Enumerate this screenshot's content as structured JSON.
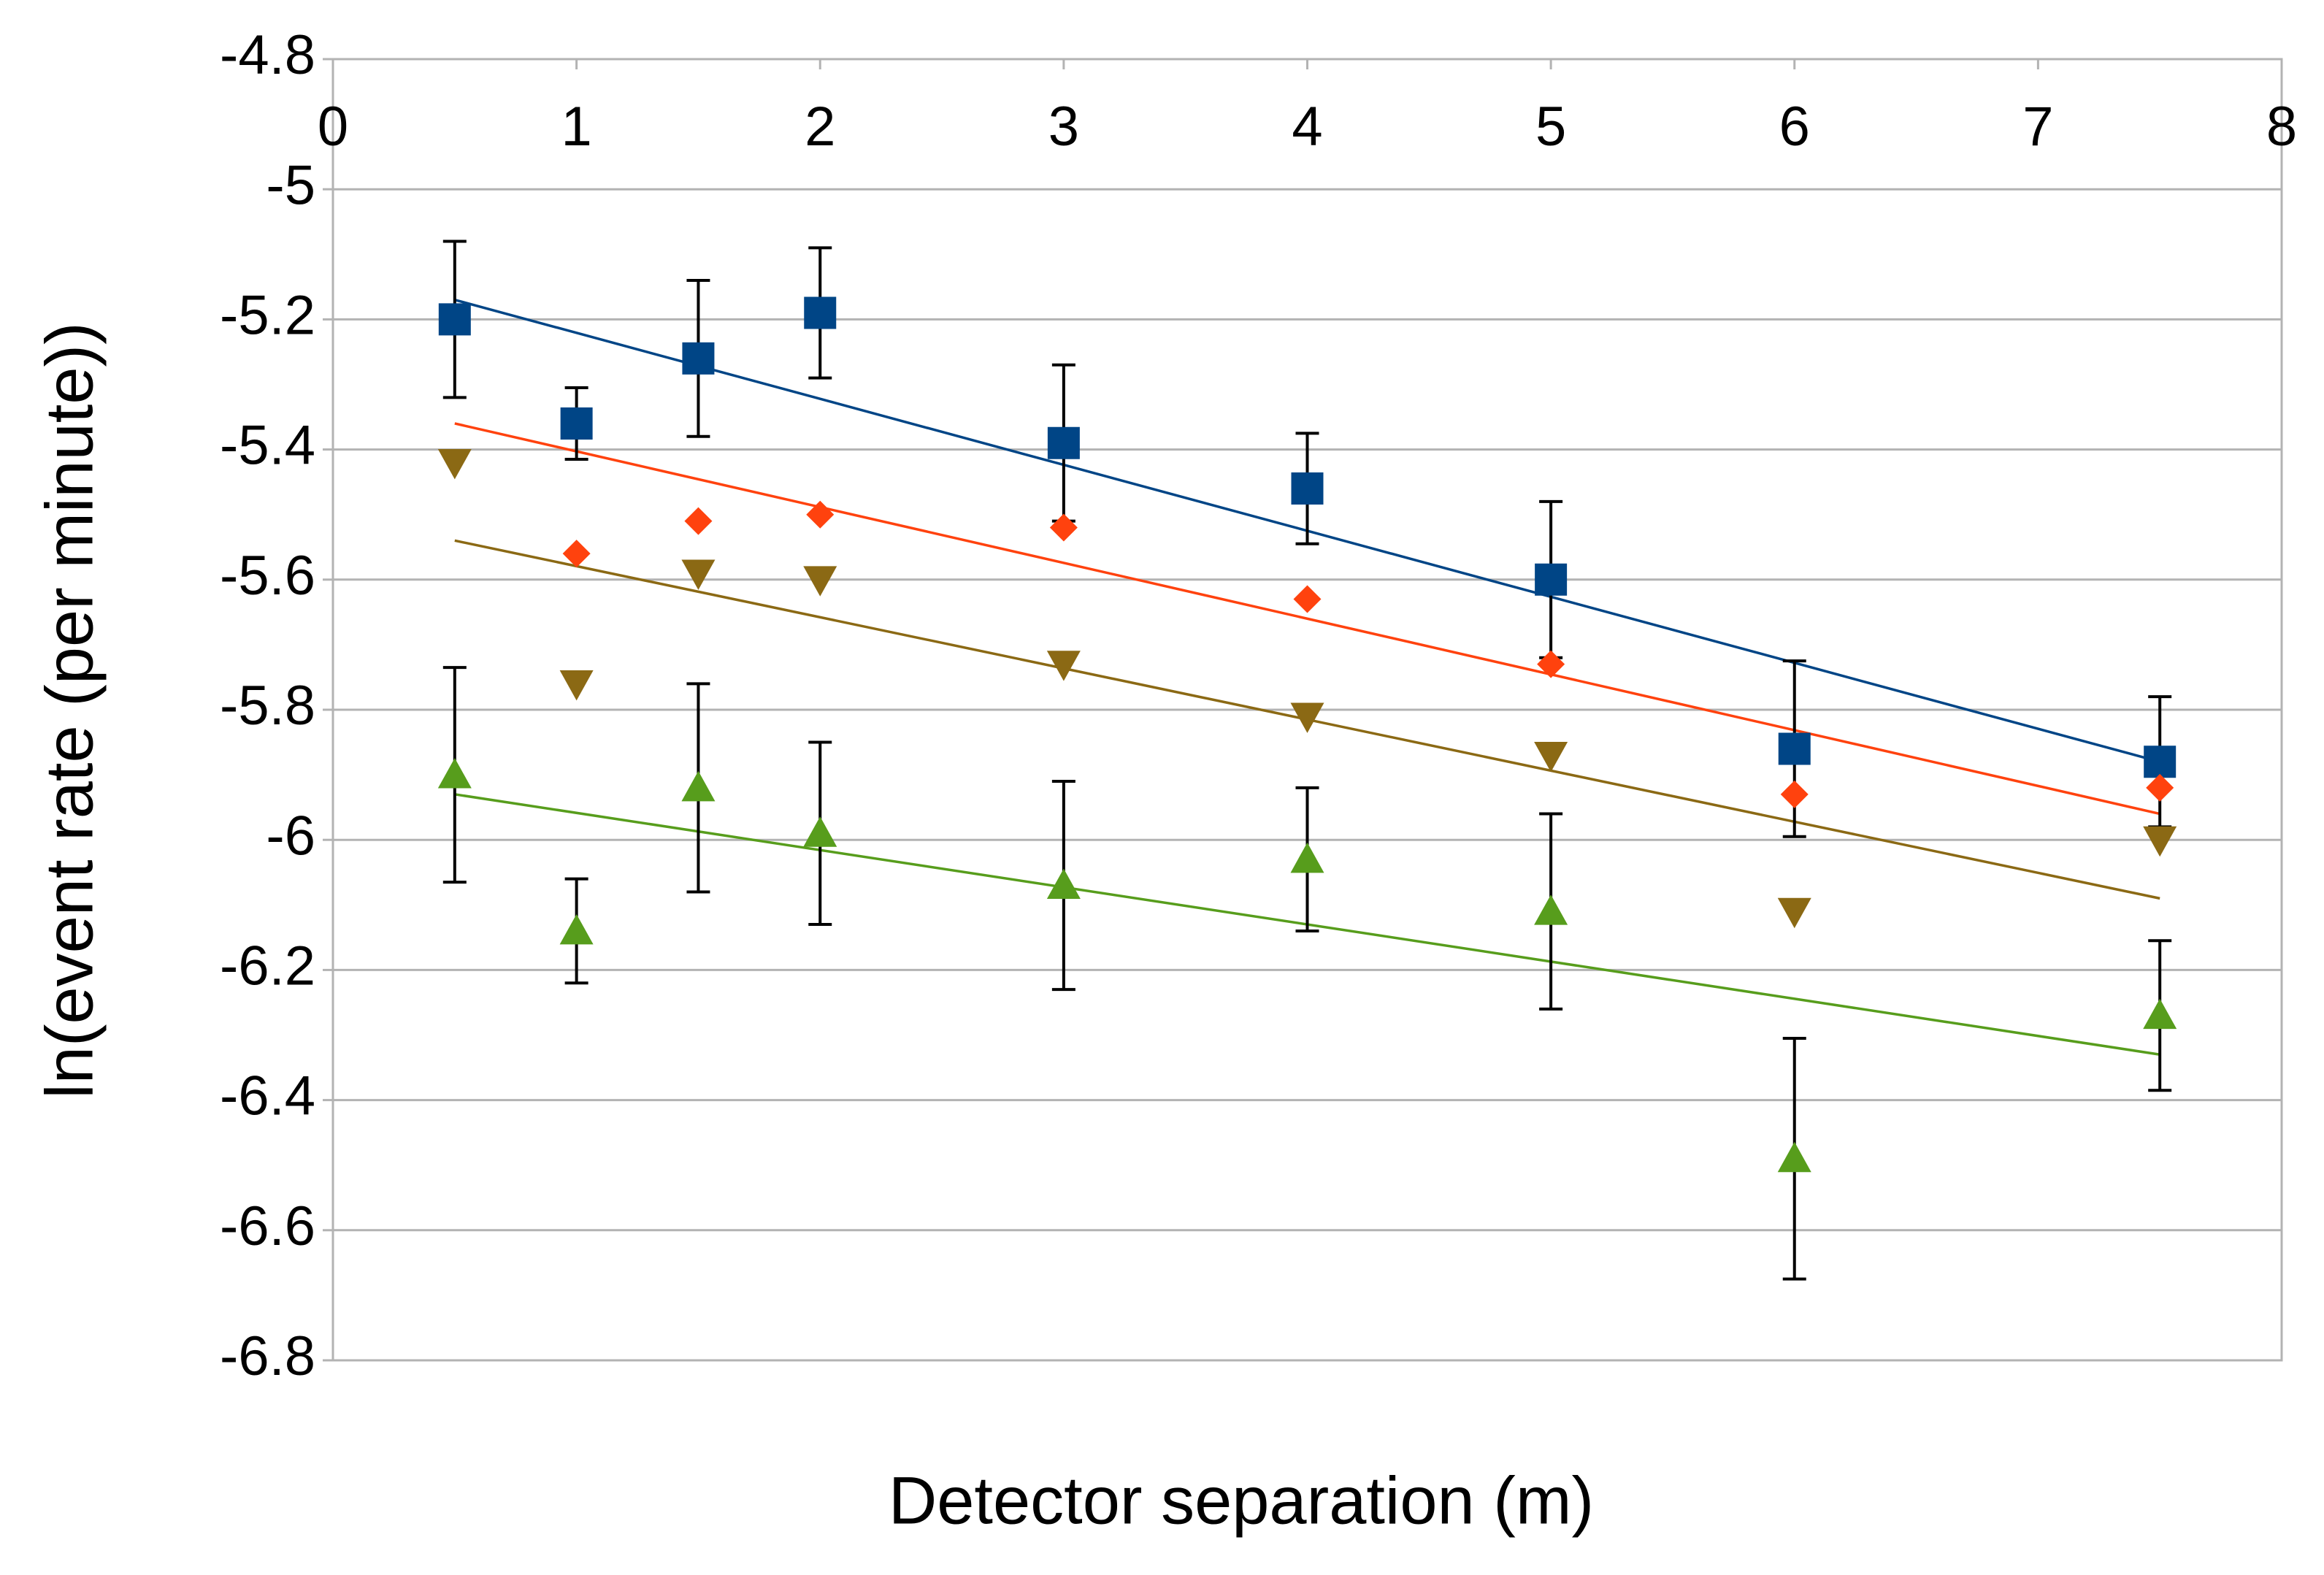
{
  "chart_data": {
    "type": "scatter",
    "x_label": "Detector separation (m)",
    "y_label": "ln(event rate (per minute))",
    "xlim": [
      0,
      8
    ],
    "xticks": [
      0,
      1,
      2,
      3,
      4,
      5,
      6,
      7,
      8
    ],
    "ylim": [
      -6.8,
      -4.8
    ],
    "yticks": [
      -4.8,
      -5,
      -5.2,
      -5.4,
      -5.6,
      -5.8,
      -6,
      -6.2,
      -6.4,
      -6.6,
      -6.8
    ],
    "grid": true,
    "x": [
      0.5,
      1,
      1.5,
      2,
      3,
      4,
      5,
      6,
      7.5
    ],
    "series": [
      {
        "color": "#004586",
        "marker": "square",
        "values": [
          -5.2,
          -5.36,
          -5.26,
          -5.19,
          -5.39,
          -5.46,
          -5.6,
          -5.86,
          -5.88
        ],
        "errors": [
          0.12,
          0.055,
          0.12,
          0.1,
          0.12,
          0.085,
          0.12,
          0.135,
          0.1
        ],
        "trendline": {
          "x": [
            0.5,
            7.5
          ],
          "values": [
            -5.17,
            -5.88
          ]
        }
      },
      {
        "color": "#ff420e",
        "marker": "diamond",
        "values": [
          null,
          -5.56,
          -5.51,
          -5.5,
          -5.52,
          -5.63,
          -5.73,
          -5.93,
          -5.92
        ],
        "trendline": {
          "x": [
            0.5,
            7.5
          ],
          "values": [
            -5.36,
            -5.96
          ]
        }
      },
      {
        "color": "#8b6914",
        "marker": "triangle-down",
        "values": [
          -5.42,
          -5.76,
          -5.59,
          -5.6,
          -5.73,
          -5.81,
          -5.87,
          -6.11,
          -6.0
        ],
        "trendline": {
          "x": [
            0.5,
            7.5
          ],
          "values": [
            -5.54,
            -6.09
          ]
        }
      },
      {
        "color": "#579d1c",
        "marker": "triangle-up",
        "values": [
          -5.9,
          -6.14,
          -5.92,
          -5.99,
          -6.07,
          -6.03,
          -6.11,
          -6.49,
          -6.27
        ],
        "errors": [
          0.165,
          0.08,
          0.16,
          0.14,
          0.16,
          0.11,
          0.15,
          0.185,
          0.115
        ],
        "trendline": {
          "x": [
            0.5,
            7.5
          ],
          "values": [
            -5.93,
            -6.33
          ]
        }
      }
    ]
  }
}
